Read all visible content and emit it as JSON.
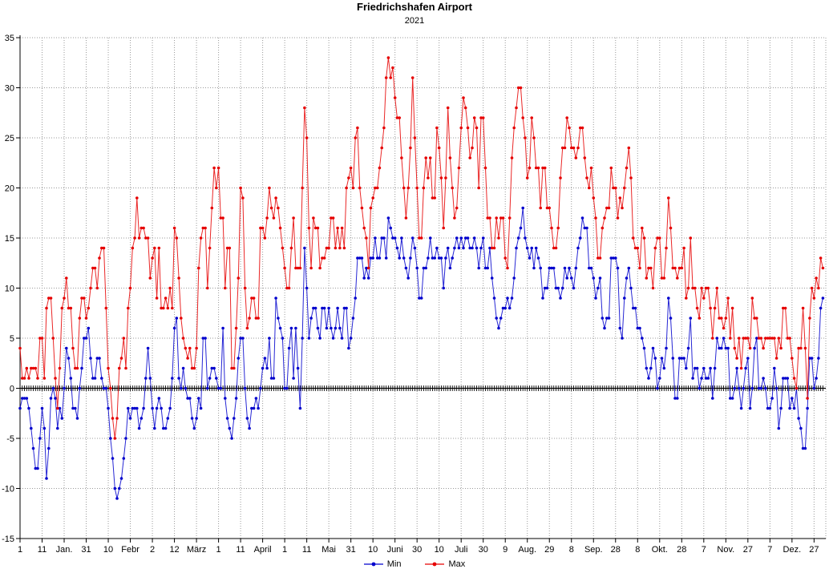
{
  "header": {
    "title": "Friedrichshafen Airport",
    "subtitle": "2021"
  },
  "chart_data": {
    "type": "line",
    "title": "Friedrichshafen Airport",
    "subtitle": "2021",
    "xlabel": "",
    "ylabel": "",
    "ylim": [
      -15,
      35
    ],
    "y_ticks": [
      35,
      30,
      25,
      20,
      15,
      10,
      5,
      0,
      -5,
      -10,
      -15
    ],
    "grid": true,
    "legend_position": "bottom-center",
    "x_unit": "day of year (1-365)",
    "x_ticks": {
      "days": [
        1,
        11,
        21,
        31,
        41,
        51,
        61,
        71,
        81,
        91,
        101,
        111,
        121,
        131,
        141,
        151,
        161,
        171,
        181,
        191,
        201,
        211,
        221,
        231,
        241,
        251,
        261,
        271,
        281,
        291,
        301,
        311,
        321,
        331,
        341,
        351,
        361
      ],
      "labels": [
        "1",
        "11",
        "Jan.",
        "31",
        "10",
        "Febr",
        "2",
        "12",
        "März",
        "1",
        "11",
        "April",
        "1",
        "11",
        "Mai",
        "31",
        "10",
        "Juni",
        "30",
        "10",
        "Juli",
        "30",
        "9",
        "Aug.",
        "29",
        "8",
        "Sep.",
        "28",
        "8",
        "Okt.",
        "28",
        "7",
        "Nov.",
        "27",
        "7",
        "Dez.",
        "27"
      ]
    },
    "series": [
      {
        "name": "Min",
        "color": "#0000cd",
        "values": [
          -2,
          -1,
          -1,
          -1,
          -2,
          -4,
          -6,
          -8,
          -8,
          -5,
          -2,
          -4,
          -9,
          -6,
          -1,
          0,
          -1,
          -4,
          -2,
          -3,
          0,
          4,
          3,
          1,
          -2,
          -2,
          -3,
          0,
          2,
          5,
          5,
          6,
          3,
          1,
          1,
          3,
          3,
          1,
          0,
          0,
          -2,
          -5,
          -7,
          -10,
          -11,
          -10,
          -9,
          -7,
          -5,
          -2,
          -3,
          -2,
          -2,
          -2,
          -4,
          -3,
          -2,
          1,
          4,
          1,
          -2,
          -4,
          -2,
          -1,
          -2,
          -4,
          -4,
          -3,
          -2,
          1,
          6,
          7,
          1,
          0,
          2,
          0,
          -1,
          -1,
          -3,
          -4,
          -3,
          -1,
          -2,
          5,
          5,
          0,
          1,
          2,
          2,
          1,
          0,
          0,
          6,
          -1,
          -3,
          -4,
          -5,
          -3,
          -1,
          3,
          5,
          5,
          0,
          -3,
          -4,
          -2,
          -2,
          -1,
          -2,
          0,
          2,
          3,
          2,
          5,
          1,
          1,
          9,
          7,
          6,
          5,
          0,
          0,
          4,
          6,
          1,
          6,
          2,
          -2,
          5,
          14,
          10,
          5,
          7,
          8,
          8,
          6,
          5,
          8,
          8,
          6,
          8,
          6,
          5,
          6,
          8,
          6,
          5,
          8,
          8,
          4,
          5,
          7,
          9,
          13,
          13,
          13,
          11,
          12,
          11,
          13,
          13,
          15,
          13,
          13,
          15,
          15,
          13,
          17,
          16,
          15,
          15,
          14,
          13,
          15,
          13,
          12,
          11,
          13,
          15,
          14,
          12,
          9,
          9,
          12,
          12,
          13,
          15,
          13,
          13,
          14,
          13,
          13,
          10,
          13,
          14,
          12,
          13,
          14,
          15,
          14,
          15,
          14,
          15,
          15,
          14,
          14,
          15,
          14,
          12,
          14,
          15,
          12,
          12,
          14,
          11,
          9,
          7,
          6,
          7,
          8,
          8,
          9,
          8,
          9,
          11,
          14,
          15,
          16,
          18,
          15,
          14,
          13,
          14,
          12,
          14,
          13,
          12,
          9,
          10,
          10,
          12,
          12,
          12,
          10,
          10,
          9,
          10,
          12,
          11,
          12,
          11,
          10,
          12,
          14,
          15,
          17,
          16,
          16,
          12,
          12,
          11,
          9,
          10,
          11,
          7,
          6,
          7,
          7,
          13,
          13,
          13,
          12,
          6,
          5,
          9,
          11,
          12,
          10,
          8,
          8,
          6,
          6,
          5,
          4,
          2,
          1,
          2,
          4,
          3,
          0,
          1,
          3,
          2,
          4,
          9,
          7,
          3,
          -1,
          -1,
          3,
          3,
          3,
          2,
          4,
          7,
          1,
          2,
          2,
          0,
          1,
          2,
          1,
          1,
          2,
          -1,
          2,
          5,
          4,
          4,
          5,
          4,
          4,
          -1,
          -1,
          0,
          2,
          0,
          -2,
          0,
          2,
          3,
          -2,
          0,
          4,
          5,
          0,
          0,
          1,
          0,
          -2,
          -2,
          -1,
          2,
          0,
          -4,
          -2,
          1,
          1,
          1,
          -2,
          -1,
          -2,
          0,
          -3,
          -4,
          -6,
          -6,
          -2,
          3,
          3,
          0,
          1,
          3,
          8,
          9
        ]
      },
      {
        "name": "Max",
        "color": "#e60000",
        "values": [
          4,
          1,
          1,
          2,
          1,
          2,
          2,
          2,
          1,
          5,
          5,
          1,
          8,
          9,
          9,
          5,
          1,
          -2,
          2,
          8,
          9,
          11,
          8,
          8,
          4,
          2,
          2,
          7,
          9,
          9,
          7,
          8,
          10,
          12,
          12,
          10,
          13,
          14,
          14,
          8,
          2,
          0,
          -3,
          -5,
          -3,
          2,
          3,
          5,
          2,
          8,
          10,
          14,
          15,
          19,
          15,
          16,
          16,
          15,
          15,
          11,
          13,
          14,
          9,
          14,
          8,
          8,
          9,
          8,
          10,
          8,
          16,
          15,
          11,
          7,
          5,
          4,
          3,
          4,
          2,
          2,
          4,
          12,
          15,
          16,
          16,
          10,
          14,
          18,
          22,
          20,
          22,
          17,
          17,
          10,
          14,
          14,
          2,
          2,
          6,
          11,
          20,
          19,
          10,
          6,
          7,
          9,
          9,
          7,
          7,
          16,
          16,
          15,
          17,
          20,
          18,
          17,
          19,
          18,
          16,
          14,
          12,
          10,
          10,
          14,
          17,
          12,
          12,
          12,
          20,
          28,
          25,
          16,
          12,
          17,
          16,
          16,
          12,
          13,
          13,
          14,
          14,
          17,
          17,
          14,
          16,
          14,
          16,
          14,
          20,
          21,
          22,
          20,
          25,
          26,
          20,
          18,
          16,
          15,
          12,
          18,
          19,
          20,
          20,
          22,
          24,
          26,
          31,
          33,
          31,
          32,
          29,
          27,
          27,
          23,
          20,
          17,
          20,
          24,
          31,
          25,
          20,
          15,
          15,
          20,
          23,
          21,
          23,
          19,
          19,
          26,
          24,
          21,
          16,
          21,
          28,
          23,
          20,
          17,
          18,
          22,
          26,
          29,
          28,
          26,
          23,
          24,
          27,
          26,
          20,
          27,
          27,
          22,
          17,
          17,
          14,
          14,
          17,
          15,
          17,
          17,
          13,
          12,
          17,
          23,
          26,
          28,
          30,
          30,
          27,
          25,
          21,
          22,
          27,
          25,
          22,
          22,
          18,
          22,
          22,
          18,
          18,
          16,
          14,
          14,
          16,
          21,
          24,
          24,
          27,
          26,
          24,
          24,
          23,
          24,
          26,
          26,
          23,
          21,
          20,
          22,
          19,
          17,
          13,
          13,
          16,
          17,
          18,
          18,
          22,
          20,
          20,
          17,
          19,
          18,
          20,
          22,
          24,
          21,
          15,
          14,
          14,
          12,
          16,
          15,
          11,
          12,
          12,
          10,
          14,
          15,
          15,
          11,
          11,
          14,
          19,
          16,
          12,
          12,
          11,
          12,
          12,
          14,
          9,
          10,
          15,
          10,
          10,
          8,
          7,
          10,
          9,
          10,
          10,
          8,
          5,
          8,
          10,
          7,
          7,
          6,
          7,
          9,
          5,
          8,
          4,
          3,
          5,
          2,
          5,
          5,
          5,
          4,
          9,
          7,
          7,
          5,
          5,
          4,
          5,
          5,
          5,
          5,
          5,
          3,
          5,
          4,
          8,
          8,
          5,
          5,
          3,
          1,
          0,
          4,
          4,
          8,
          4,
          -1,
          7,
          10,
          9,
          11,
          10,
          13,
          12
        ]
      }
    ]
  }
}
